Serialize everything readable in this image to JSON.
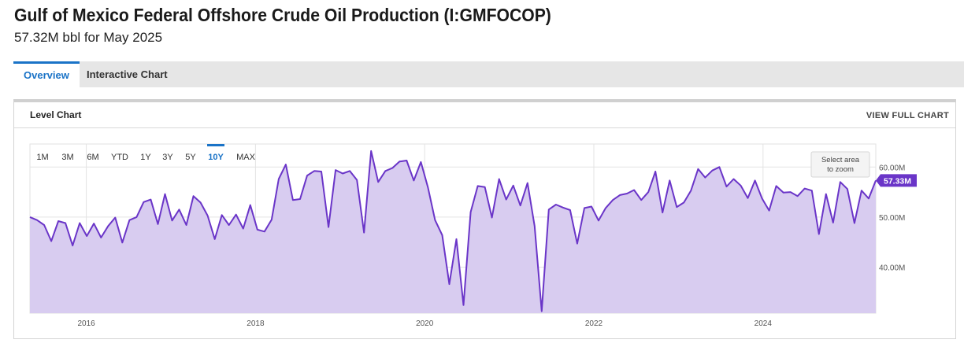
{
  "header": {
    "title": "Gulf of Mexico Federal Offshore Crude Oil Production (I:GMFOCOP)",
    "subtitle": "57.32M bbl for May 2025"
  },
  "tabs": [
    {
      "label": "Overview",
      "active": true
    },
    {
      "label": "Interactive Chart",
      "active": false
    }
  ],
  "panel": {
    "title": "Level Chart",
    "view_full_label": "VIEW FULL CHART",
    "zoom_hint": [
      "Select area",
      "to zoom"
    ]
  },
  "ranges": [
    {
      "label": "1M",
      "active": false
    },
    {
      "label": "3M",
      "active": false
    },
    {
      "label": "6M",
      "active": false
    },
    {
      "label": "YTD",
      "active": false
    },
    {
      "label": "1Y",
      "active": false
    },
    {
      "label": "3Y",
      "active": false
    },
    {
      "label": "5Y",
      "active": false
    },
    {
      "label": "10Y",
      "active": true
    },
    {
      "label": "MAX",
      "active": false
    }
  ],
  "colors": {
    "accent": "#1a73c7",
    "line": "#6a35c8",
    "fill": "#d8ccf0",
    "badge": "#6a35c8"
  },
  "chart_data": {
    "type": "area",
    "title": "Level Chart",
    "xlabel": "",
    "ylabel": "",
    "y_unit": "M bbl",
    "ylim": [
      30.8,
      64.6
    ],
    "y_ticks": [
      {
        "value": 40,
        "label": "40.00M"
      },
      {
        "value": 50,
        "label": "50.00M"
      },
      {
        "value": 60,
        "label": "60.00M"
      }
    ],
    "x_ticks": [
      "2016",
      "2018",
      "2020",
      "2022",
      "2024"
    ],
    "x_start": "2015-05",
    "x_end": "2025-05",
    "grid": true,
    "last_value_label": "57.33M",
    "series": [
      {
        "values": [
          50.0,
          49.4,
          48.4,
          45.2,
          49.2,
          48.8,
          44.3,
          48.8,
          46.2,
          48.7,
          45.9,
          48.2,
          49.9,
          44.9,
          49.4,
          50.0,
          53.0,
          53.5,
          48.6,
          54.6,
          49.3,
          51.5,
          48.4,
          54.2,
          52.9,
          50.3,
          45.6,
          50.4,
          48.4,
          50.5,
          47.7,
          52.4,
          47.5,
          47.1,
          49.5,
          57.6,
          60.5,
          53.4,
          53.6,
          58.3,
          59.2,
          59.1,
          48.0,
          59.4,
          58.7,
          59.2,
          57.4,
          46.9,
          63.2,
          57.0,
          59.2,
          59.8,
          61.1,
          61.3,
          57.3,
          61.0,
          55.9,
          49.4,
          46.4,
          36.6,
          45.6,
          32.4,
          51.0,
          56.2,
          56.0,
          49.9,
          57.6,
          53.5,
          56.3,
          52.3,
          56.8,
          48.2,
          31.2,
          51.5,
          52.5,
          51.9,
          51.4,
          44.7,
          51.8,
          52.1,
          49.3,
          51.8,
          53.4,
          54.4,
          54.7,
          55.4,
          53.4,
          55.0,
          59.1,
          50.9,
          57.3,
          52.0,
          52.9,
          55.3,
          59.6,
          57.9,
          59.3,
          60.0,
          56.1,
          57.6,
          56.3,
          53.8,
          57.3,
          53.7,
          51.3,
          56.2,
          54.9,
          55.0,
          54.2,
          55.7,
          55.3,
          46.6,
          54.6,
          48.9,
          57.0,
          55.6,
          48.8,
          55.3,
          53.7,
          57.3
        ]
      }
    ]
  }
}
